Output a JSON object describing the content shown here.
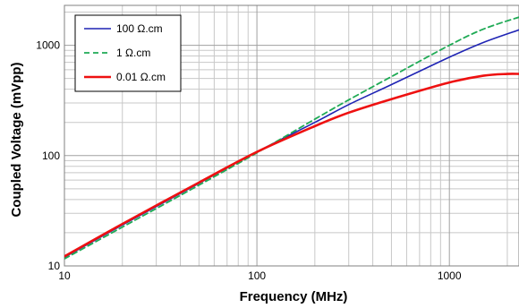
{
  "chart_data": {
    "type": "line",
    "title": "",
    "xlabel": "Frequency (MHz)",
    "ylabel": "Coupled Voltage (mVpp)",
    "x_scale": "log",
    "y_scale": "log",
    "xlim": [
      10,
      2300
    ],
    "ylim": [
      10,
      2300
    ],
    "x_ticks": [
      {
        "value": 10,
        "label": "10"
      },
      {
        "value": 100,
        "label": "100"
      },
      {
        "value": 1000,
        "label": "1000"
      }
    ],
    "y_ticks": [
      {
        "value": 10,
        "label": "10"
      },
      {
        "value": 100,
        "label": "100"
      },
      {
        "value": 1000,
        "label": "1000"
      }
    ],
    "grid": true,
    "legend_position": "top-left",
    "series": [
      {
        "name": "100 Ω.cm",
        "color": "#1f24b4",
        "dash": "solid",
        "points": [
          [
            10,
            12
          ],
          [
            20,
            23.5
          ],
          [
            50,
            56
          ],
          [
            100,
            108
          ],
          [
            200,
            200
          ],
          [
            300,
            290
          ],
          [
            500,
            440
          ],
          [
            1000,
            780
          ],
          [
            1500,
            1060
          ],
          [
            2300,
            1380
          ]
        ]
      },
      {
        "name": "1 Ω.cm",
        "color": "#1faa55",
        "dash": "dashed",
        "points": [
          [
            10,
            11.6
          ],
          [
            20,
            22.5
          ],
          [
            50,
            54
          ],
          [
            100,
            106
          ],
          [
            200,
            214
          ],
          [
            300,
            320
          ],
          [
            500,
            520
          ],
          [
            1000,
            1000
          ],
          [
            1500,
            1400
          ],
          [
            2300,
            1800
          ]
        ]
      },
      {
        "name": "0.01 Ω.cm",
        "color": "#ee1111",
        "dash": "solid",
        "points": [
          [
            10,
            12.2
          ],
          [
            20,
            24
          ],
          [
            50,
            57
          ],
          [
            100,
            108
          ],
          [
            200,
            185
          ],
          [
            300,
            245
          ],
          [
            500,
            325
          ],
          [
            1000,
            460
          ],
          [
            1500,
            530
          ],
          [
            2000,
            550
          ],
          [
            2300,
            550
          ]
        ]
      }
    ]
  }
}
